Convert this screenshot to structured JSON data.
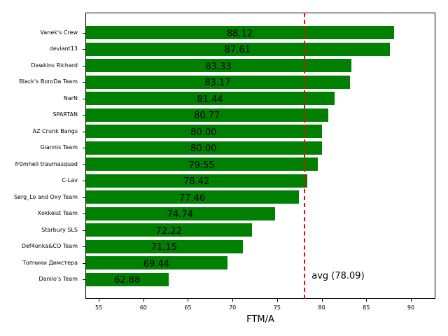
{
  "chart_data": {
    "type": "bar",
    "orientation": "horizontal",
    "title": "",
    "xlabel": "FTM/A",
    "ylabel": "",
    "xlim": [
      53.5,
      92.75
    ],
    "xticks": [
      55,
      60,
      65,
      70,
      75,
      80,
      85,
      90
    ],
    "categories": [
      "Vanek's Crew",
      "deviant13",
      "Dawkins Richard",
      "Black's BoroDa Team",
      "NarN",
      "SPARTAN",
      "AZ Crunk Bangs",
      "Giannis Team",
      "fr0mhell traumasquad",
      "C-Lav",
      "Serg_Lo and Oxy Team",
      "Xokkeist Team",
      "Starbury SLS",
      "Def4onka&CO Team",
      "Топчики Димстера",
      "Danilo's Team"
    ],
    "values": [
      88.12,
      87.61,
      83.33,
      83.17,
      81.44,
      80.77,
      80.0,
      80.0,
      79.55,
      78.42,
      77.46,
      74.74,
      72.22,
      71.15,
      69.44,
      62.88
    ],
    "value_labels": [
      "88.12",
      "87.61",
      "83.33",
      "83.17",
      "81.44",
      "80.77",
      "80.00",
      "80.00",
      "79.55",
      "78.42",
      "77.46",
      "74.74",
      "72.22",
      "71.15",
      "69.44",
      "62.88"
    ],
    "bar_color": "#008000",
    "reference_line": {
      "value": 78.09,
      "label": "avg (78.09)",
      "color": "#ff0000",
      "style": "dashed"
    },
    "grid": false,
    "legend": null
  }
}
